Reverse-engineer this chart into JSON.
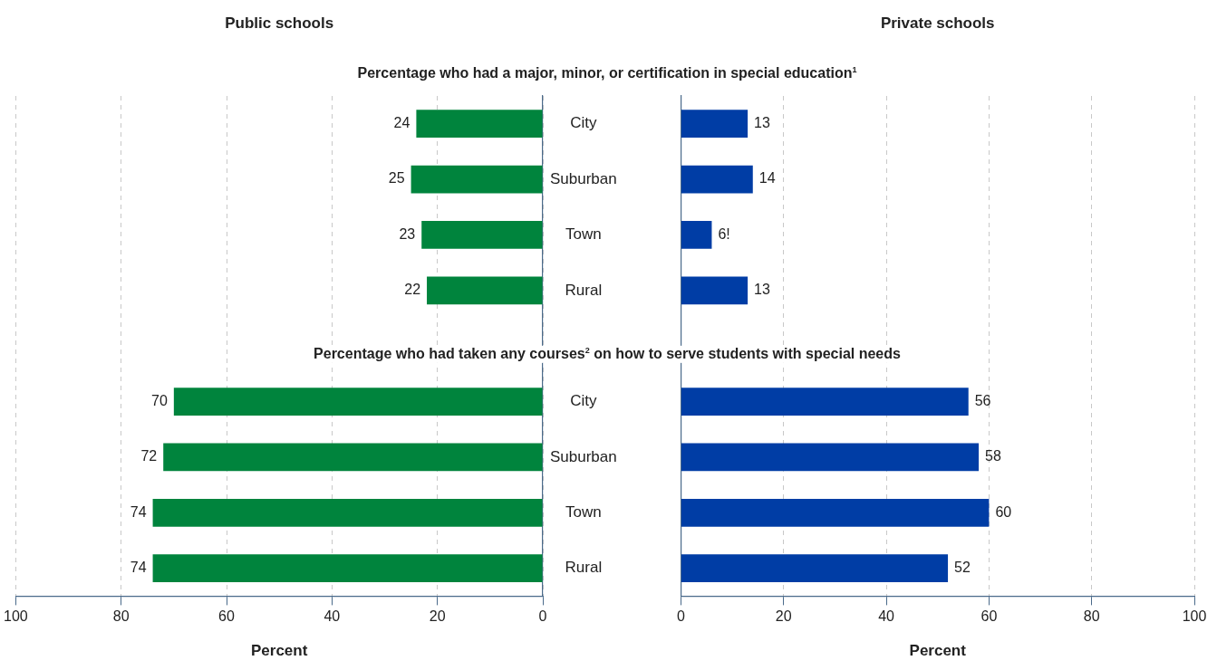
{
  "chart_data": [
    {
      "type": "bar",
      "orientation": "horizontal",
      "title": "Public schools",
      "xlabel": "Percent",
      "categories": [
        "City",
        "Suburban",
        "Town",
        "Rural",
        null,
        "City",
        "Suburban",
        "Town",
        "Rural"
      ],
      "values": [
        24,
        25,
        23,
        22,
        null,
        70,
        72,
        74,
        74
      ],
      "color": "#00843d",
      "xlim": [
        100,
        0
      ],
      "xticks": [
        100,
        80,
        60,
        40,
        20,
        0
      ],
      "grid": "x",
      "data_labels": true,
      "annotations": [
        "Percentage who had a major, minor, or certification in special education$^{1}$",
        "Percentage who had taken any courses$^{2}$ on how to serve students with special needs"
      ]
    },
    {
      "type": "bar",
      "orientation": "horizontal",
      "title": "Private schools",
      "xlabel": "Percent",
      "categories": [
        null,
        null,
        null,
        null,
        null,
        null,
        null,
        null,
        null
      ],
      "values": [
        13,
        14,
        6,
        13,
        null,
        56,
        58,
        60,
        52
      ],
      "value_labels": [
        "13",
        "14",
        "6!",
        "13",
        null,
        "56",
        "58",
        "60",
        "52"
      ],
      "color": "#003da5",
      "xlim": [
        0,
        100
      ],
      "xticks": [
        0,
        20,
        40,
        60,
        80,
        100
      ],
      "grid": "x",
      "tick_labels": "x"
    }
  ]
}
